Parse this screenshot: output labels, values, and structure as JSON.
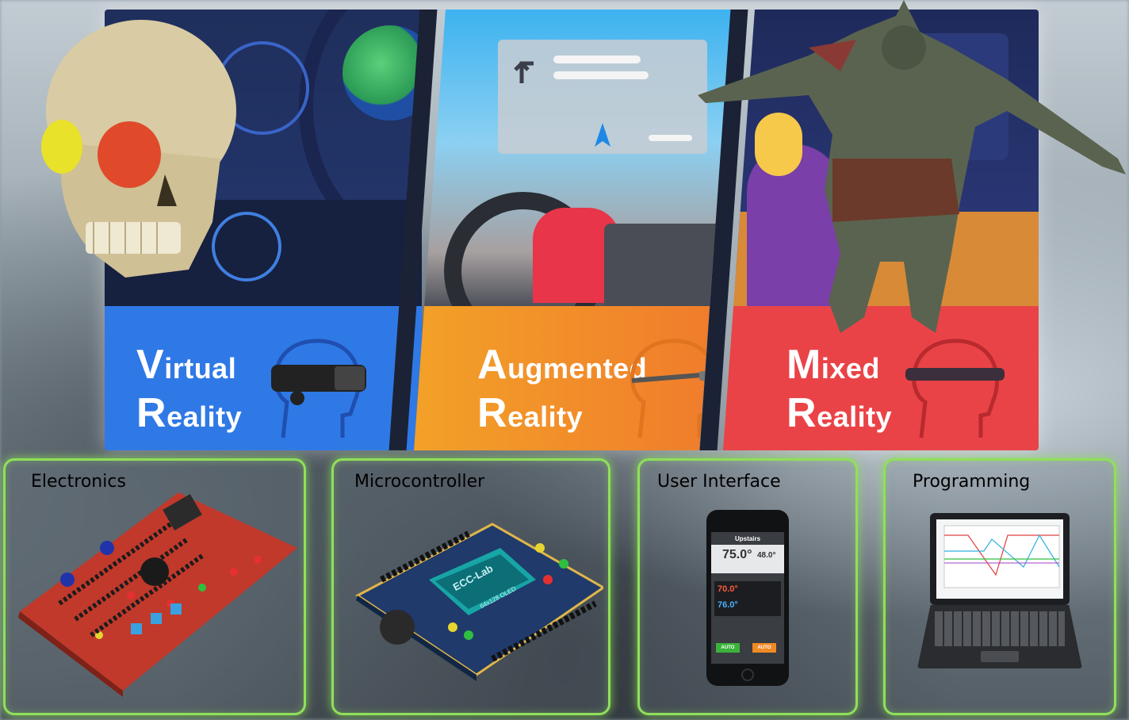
{
  "banner": {
    "panels": [
      {
        "first_letter": "V",
        "first_rest": "irtual",
        "second_letter": "R",
        "second_rest": "eality"
      },
      {
        "first_letter": "A",
        "first_rest": "ugmented",
        "second_letter": "R",
        "second_rest": "eality"
      },
      {
        "first_letter": "M",
        "first_rest": "ixed",
        "second_letter": "R",
        "second_rest": "eality"
      }
    ]
  },
  "cards": {
    "electronics": "Electronics",
    "microcontroller": "Microcontroller",
    "user_interface": "User Interface",
    "programming": "Programming"
  },
  "board_label": "ECC-Lab",
  "oled_label": "64x128 OLED",
  "phone": {
    "title": "Upstairs",
    "main_temp": "75.0°",
    "second_temp": "48.0°",
    "set_heat": "70.0°",
    "set_cool": "76.0°",
    "btn_left": "AUTO",
    "btn_right": "AUTO"
  },
  "colors": {
    "vr": "#2f79e6",
    "ar": "#f3a128",
    "mr": "#ea4347",
    "card_border": "#8fe05a"
  }
}
